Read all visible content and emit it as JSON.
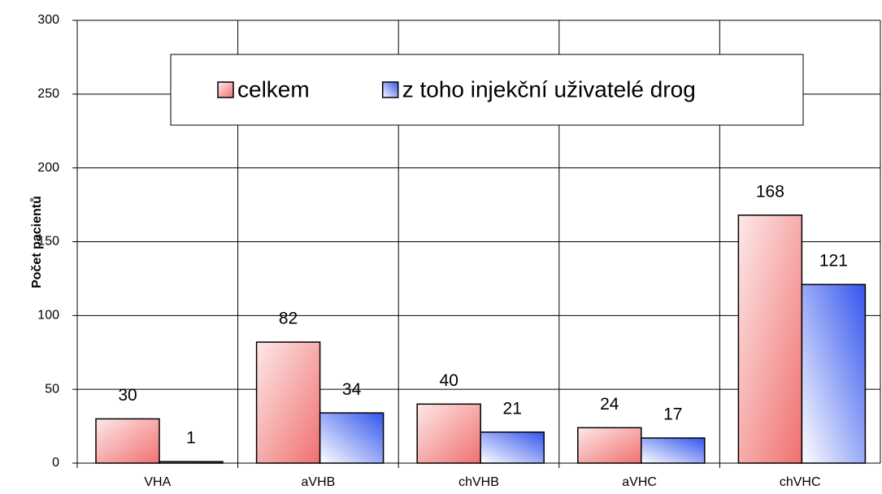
{
  "chart_data": {
    "type": "bar",
    "y_label": "Počet pacientů",
    "categories": [
      "VHA",
      "aVHB",
      "chVHB",
      "aVHC",
      "chVHC"
    ],
    "series": [
      {
        "name": "celkem",
        "color": "#f07070",
        "values": [
          30,
          82,
          40,
          24,
          168
        ]
      },
      {
        "name": "z toho injekční uživatelé drog",
        "color": "#3355ee",
        "values": [
          1,
          34,
          21,
          17,
          121
        ]
      }
    ],
    "ylim": [
      0,
      300
    ],
    "yticks": [
      0,
      50,
      100,
      150,
      200,
      250,
      300
    ],
    "grid": true,
    "legend": "top"
  }
}
